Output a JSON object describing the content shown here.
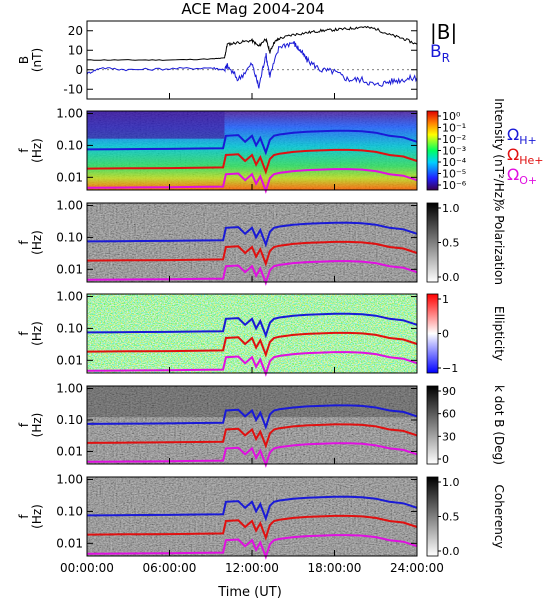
{
  "chart_data": [
    {
      "type": "line",
      "title": "ACE Mag 2004-204",
      "ylabel": [
        "B",
        "(nT)"
      ],
      "ylim": [
        -15,
        25
      ],
      "yticks": [
        -10,
        0,
        10,
        20
      ],
      "xlim": [
        0,
        24
      ],
      "legend": [
        {
          "label": "|B|",
          "color": "#000000"
        },
        {
          "label": "B",
          "sub": "R",
          "color": "#1a1ad6"
        }
      ],
      "series": [
        {
          "name": "|B|",
          "color": "#000000",
          "x": [
            0,
            3,
            6,
            9,
            10.0,
            10.2,
            11,
            12,
            12.5,
            13,
            13.3,
            13.6,
            14,
            15,
            16,
            17,
            18,
            19,
            20,
            21,
            22,
            23,
            24
          ],
          "y": [
            5,
            5,
            5,
            5.5,
            6,
            13,
            14,
            15,
            12,
            16,
            9,
            14,
            16,
            18,
            19,
            20,
            20.5,
            21,
            22,
            21,
            18,
            16,
            13
          ]
        },
        {
          "name": "B_R",
          "color": "#1a1ad6",
          "x": [
            0,
            1,
            3,
            6,
            9,
            10.0,
            10.2,
            11,
            12,
            12.5,
            13,
            13.3,
            14,
            15,
            15.5,
            16,
            17,
            18,
            19,
            20,
            21,
            22,
            23,
            24
          ],
          "y": [
            -2,
            1,
            0,
            0.5,
            1,
            0,
            2,
            -5,
            3,
            -9,
            8,
            -3,
            12,
            14,
            10,
            5,
            0,
            -1,
            -5,
            -5,
            -8,
            -6,
            -5,
            -4
          ]
        }
      ]
    },
    {
      "type": "heatmap",
      "ylabel": [
        "f",
        "(Hz)"
      ],
      "yticks": [
        "1.00",
        "0.10",
        "0.01"
      ],
      "colorbar": {
        "label": "Intensity (nT²/Hz)",
        "ticks": [
          "10⁰",
          "10⁻¹",
          "10⁻²",
          "10⁻³",
          "10⁻⁴",
          "10⁻⁵",
          "10⁻⁶"
        ]
      },
      "legend": [
        {
          "label": "Ω",
          "sub": "H+",
          "color": "#1a1ad6"
        },
        {
          "label": "Ω",
          "sub": "He+",
          "color": "#e01010"
        },
        {
          "label": "Ω",
          "sub": "O+",
          "color": "#e010e0"
        }
      ]
    },
    {
      "type": "heatmap",
      "ylabel": [
        "f",
        "(Hz)"
      ],
      "yticks": [
        "1.00",
        "0.10",
        "0.01"
      ],
      "colorbar": {
        "label": "% Polarization",
        "ticks": [
          "1.0",
          "0.5",
          "0.0"
        ]
      }
    },
    {
      "type": "heatmap",
      "ylabel": [
        "f",
        "(Hz)"
      ],
      "yticks": [
        "1.00",
        "0.10",
        "0.01"
      ],
      "colorbar": {
        "label": "Ellipticity",
        "ticks": [
          "1",
          "0",
          "−1"
        ]
      }
    },
    {
      "type": "heatmap",
      "ylabel": [
        "f",
        "(Hz)"
      ],
      "yticks": [
        "1.00",
        "0.10",
        "0.01"
      ],
      "colorbar": {
        "label": "k dot B (Deg)",
        "ticks": [
          "90",
          "60",
          "30",
          "0"
        ]
      }
    },
    {
      "type": "heatmap",
      "ylabel": [
        "f",
        "(Hz)"
      ],
      "yticks": [
        "1.00",
        "0.10",
        "0.01"
      ],
      "xlabel": "Time (UT)",
      "xticks": [
        "00:00:00",
        "06:00:00",
        "12:00:00",
        "18:00:00",
        "24:00:00"
      ],
      "colorbar": {
        "label": "Coherency",
        "ticks": [
          "1.0",
          "0.5",
          "0.0"
        ]
      }
    }
  ],
  "gyrofrequencies": {
    "times": [
      0,
      2,
      4,
      6,
      8,
      9.9,
      10.1,
      11,
      11.5,
      12,
      12.3,
      12.6,
      13,
      13.3,
      13.6,
      14,
      15,
      16,
      17,
      18,
      19,
      20,
      21,
      22,
      23,
      24
    ],
    "f_hplus": [
      0.075,
      0.076,
      0.077,
      0.078,
      0.08,
      0.082,
      0.2,
      0.21,
      0.13,
      0.2,
      0.1,
      0.17,
      0.06,
      0.15,
      0.2,
      0.22,
      0.25,
      0.27,
      0.28,
      0.29,
      0.29,
      0.28,
      0.25,
      0.2,
      0.18,
      0.13
    ],
    "colors": {
      "hplus": "#1a1ad6",
      "heplus": "#e01010",
      "oplus": "#e010e0"
    }
  }
}
